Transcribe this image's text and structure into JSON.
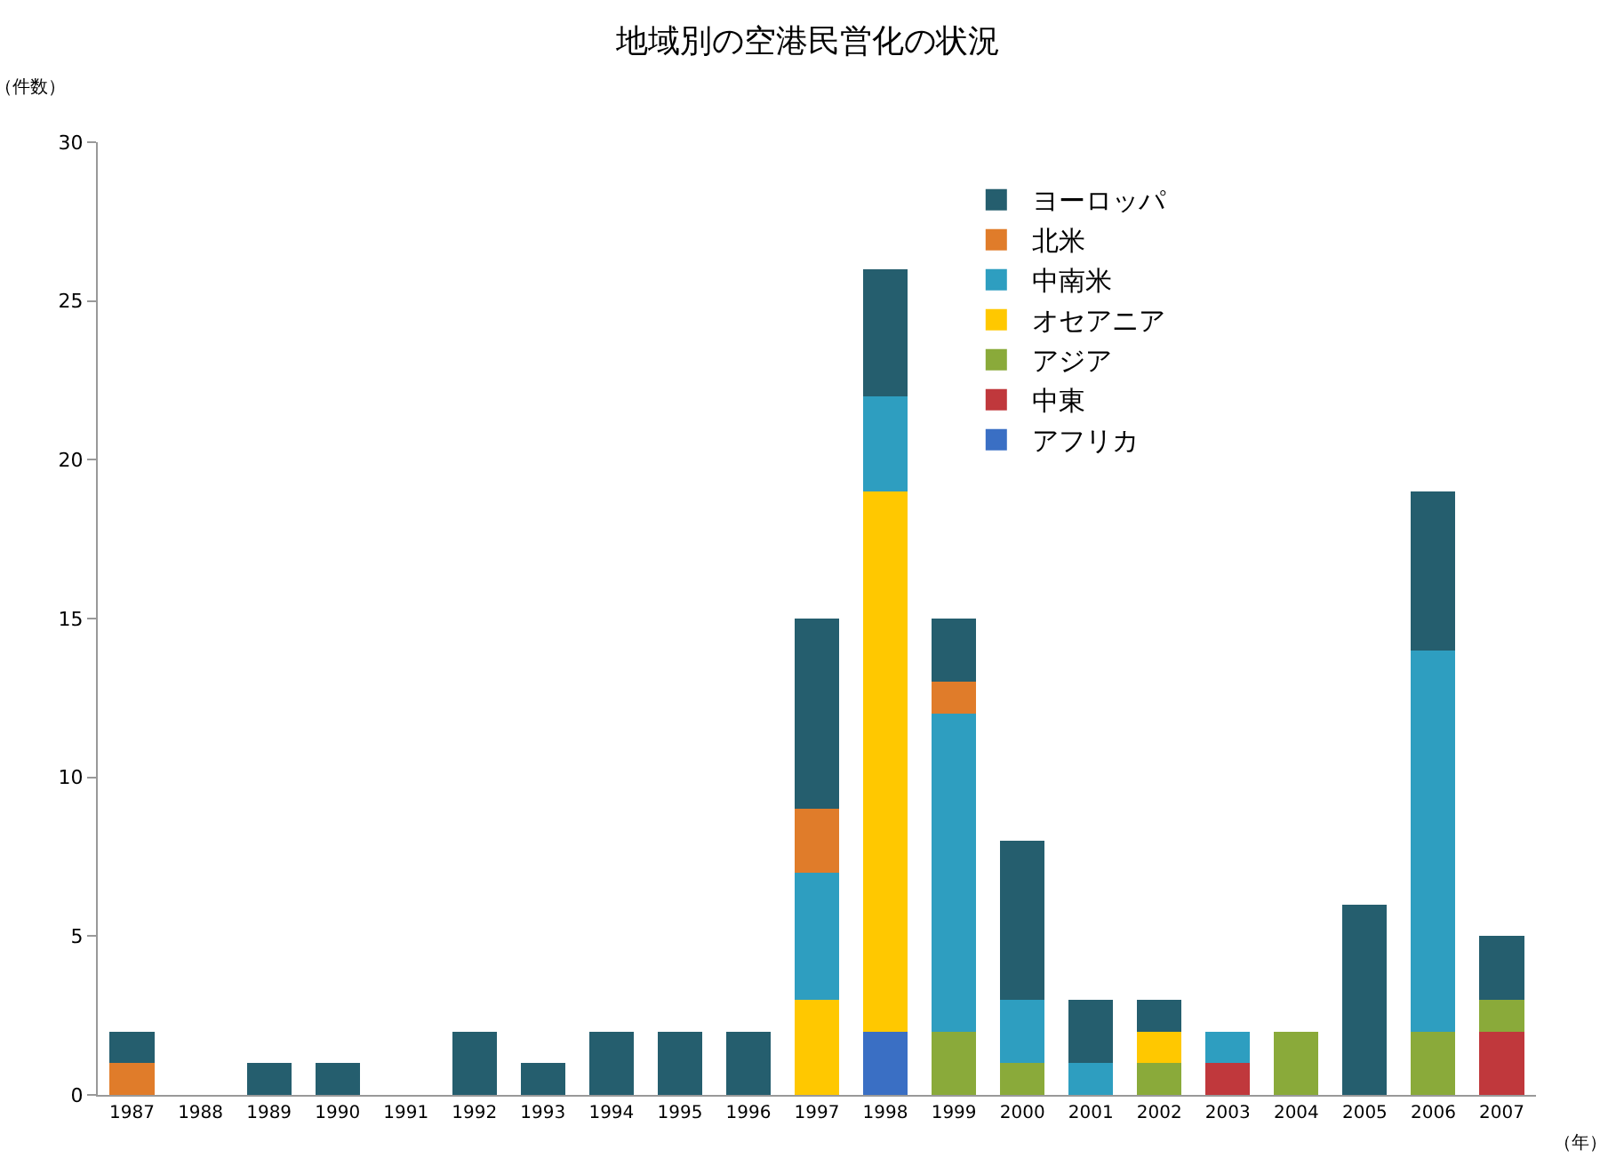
{
  "chart_data": {
    "type": "bar",
    "title": "地域別の空港民営化の状況",
    "ylabel": "（件数）",
    "xlabel": "（年）",
    "categories": [
      "1987",
      "1988",
      "1989",
      "1990",
      "1991",
      "1992",
      "1993",
      "1994",
      "1995",
      "1996",
      "1997",
      "1998",
      "1999",
      "2000",
      "2001",
      "2002",
      "2003",
      "2004",
      "2005",
      "2006",
      "2007"
    ],
    "stacked": true,
    "ylim": [
      0,
      30
    ],
    "yticks": [
      0,
      5,
      10,
      15,
      20,
      25,
      30
    ],
    "grid": false,
    "legend": "top right",
    "series": [
      {
        "name": "アフリカ",
        "color": "#3a6fc4",
        "values": [
          null,
          null,
          null,
          null,
          null,
          null,
          null,
          null,
          null,
          null,
          null,
          2,
          null,
          null,
          null,
          null,
          null,
          null,
          null,
          null,
          null
        ]
      },
      {
        "name": "中東",
        "color": "#c0383c",
        "values": [
          null,
          null,
          null,
          null,
          null,
          null,
          null,
          null,
          null,
          null,
          null,
          null,
          null,
          null,
          null,
          null,
          1,
          null,
          null,
          null,
          2
        ]
      },
      {
        "name": "アジア",
        "color": "#8aaa3a",
        "values": [
          null,
          null,
          null,
          null,
          null,
          null,
          null,
          null,
          null,
          null,
          null,
          null,
          2,
          1,
          null,
          1,
          null,
          2,
          null,
          2,
          1
        ]
      },
      {
        "name": "オセアニア",
        "color": "#ffc800",
        "values": [
          null,
          null,
          null,
          null,
          null,
          null,
          null,
          null,
          null,
          null,
          3,
          17,
          null,
          null,
          null,
          1,
          null,
          null,
          null,
          null,
          null
        ]
      },
      {
        "name": "中南米",
        "color": "#2e9ec0",
        "values": [
          null,
          null,
          null,
          null,
          null,
          null,
          null,
          null,
          null,
          null,
          4,
          3,
          10,
          2,
          1,
          null,
          1,
          null,
          null,
          12,
          null
        ]
      },
      {
        "name": "北米",
        "color": "#e07c2a",
        "values": [
          1,
          null,
          null,
          null,
          null,
          null,
          null,
          null,
          null,
          null,
          2,
          null,
          1,
          null,
          null,
          null,
          null,
          null,
          null,
          null,
          null
        ]
      },
      {
        "name": "ヨーロッパ",
        "color": "#255e6e",
        "values": [
          1,
          null,
          1,
          1,
          null,
          2,
          1,
          2,
          2,
          2,
          6,
          4,
          2,
          5,
          2,
          1,
          null,
          null,
          6,
          5,
          2
        ]
      }
    ]
  }
}
